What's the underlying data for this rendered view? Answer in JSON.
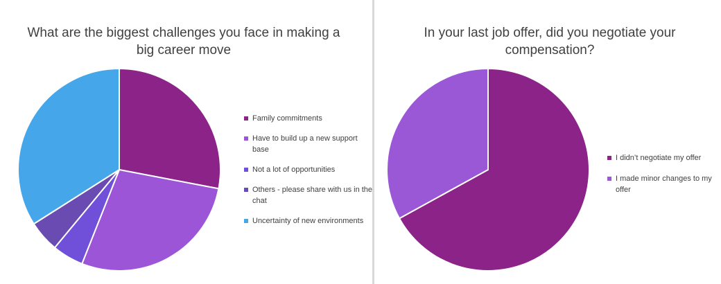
{
  "chart_data": [
    {
      "type": "pie",
      "title": "What are the biggest challenges you face in making a big career move",
      "categories": [
        "Family commitments",
        "Have to build up a new support base",
        "Not a lot of opportunities",
        "Others - please share with us in the chat",
        "Uncertainty of new environments"
      ],
      "values": [
        28,
        28,
        5,
        5,
        34
      ],
      "colors": [
        "#8b2388",
        "#9c55d6",
        "#7050d8",
        "#6a4bb2",
        "#46a6ea"
      ],
      "legend": "right",
      "start_angle": "12 o'clock",
      "direction": "clockwise"
    },
    {
      "type": "pie",
      "title": "In your last job offer, did you negotiate your compensation?",
      "categories": [
        "I didn’t negotiate my offer",
        "I made minor changes to my offer"
      ],
      "values": [
        67,
        33
      ],
      "colors": [
        "#8b2388",
        "#9a58d6"
      ],
      "legend": "right",
      "start_angle": "12 o'clock",
      "direction": "clockwise"
    }
  ]
}
